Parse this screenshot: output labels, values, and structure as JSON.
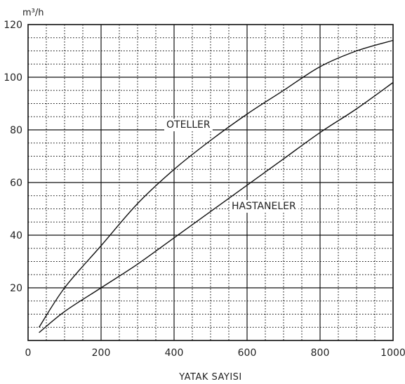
{
  "chart_data": {
    "type": "line",
    "title": "",
    "xlabel": "YATAK SAYISI",
    "ylabel": "m³/h",
    "xlim": [
      0,
      1000
    ],
    "ylim": [
      0,
      120
    ],
    "x_ticks": [
      0,
      200,
      400,
      600,
      800,
      1000
    ],
    "y_ticks": [
      20,
      40,
      60,
      80,
      100,
      120
    ],
    "x_tick_labels": [
      "0",
      "200",
      "400",
      "600",
      "800",
      "1000"
    ],
    "y_tick_labels": [
      "20",
      "40",
      "60",
      "80",
      "100",
      "120"
    ],
    "grid": true,
    "minor_grid_x_step": 50,
    "minor_grid_y_step": 5,
    "series": [
      {
        "name": "OTELLER",
        "x": [
          30,
          100,
          200,
          300,
          400,
          500,
          600,
          700,
          800,
          900,
          1000
        ],
        "y": [
          5,
          20,
          36,
          52,
          65,
          76,
          86,
          95,
          104,
          110,
          114
        ]
      },
      {
        "name": "HASTANELER",
        "x": [
          30,
          100,
          200,
          300,
          400,
          500,
          600,
          700,
          800,
          900,
          1000
        ],
        "y": [
          3,
          11,
          20,
          29,
          39,
          49,
          59,
          69,
          79,
          88,
          98
        ]
      }
    ]
  }
}
